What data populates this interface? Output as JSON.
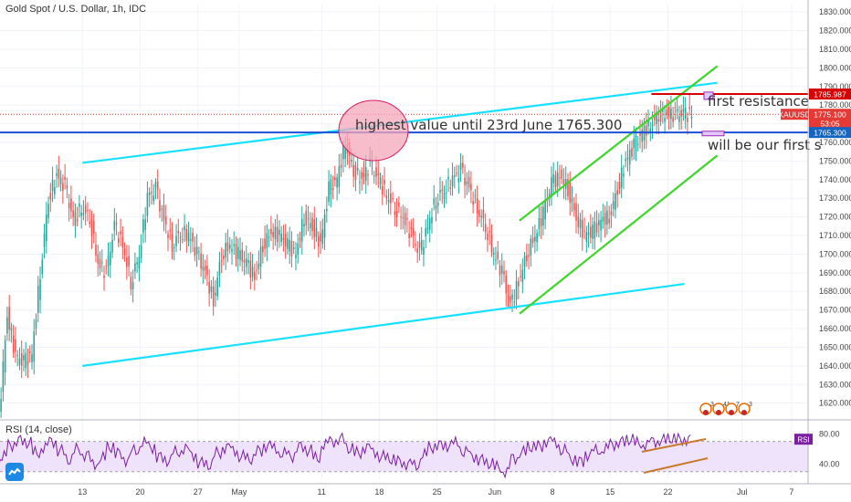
{
  "header": {
    "title": "Gold Spot / U.S. Dollar, 1h, IDC",
    "rsi_title": "RSI (14, close)"
  },
  "price_axis": {
    "ticks": [
      "1830.000",
      "1820.000",
      "1810.000",
      "1800.000",
      "1790.000",
      "1780.000",
      "1770.000",
      "1760.000",
      "1750.000",
      "1740.000",
      "1730.000",
      "1720.000",
      "1710.000",
      "1700.000",
      "1690.000",
      "1680.000",
      "1670.000",
      "1660.000",
      "1650.000",
      "1640.000",
      "1630.000",
      "1620.000"
    ],
    "tick_values": [
      1830,
      1820,
      1810,
      1800,
      1790,
      1780,
      1770,
      1760,
      1750,
      1740,
      1730,
      1720,
      1710,
      1700,
      1690,
      1680,
      1670,
      1660,
      1650,
      1640,
      1630,
      1620
    ],
    "labels": [
      {
        "text": "1785.987",
        "value": 1785.987,
        "color": "#d50000"
      },
      {
        "text": "XAUUSD",
        "value": 1775.1,
        "color": "#e53935"
      },
      {
        "text": "1775.100",
        "value": 1775.1,
        "color": "#e53935"
      },
      {
        "text": "53:05",
        "value": 1770.2,
        "color": "#e53935"
      },
      {
        "text": "1765.300",
        "value": 1765.3,
        "color": "#1565c0"
      }
    ]
  },
  "rsi_axis": {
    "ticks": [
      "80.00",
      "40.00"
    ],
    "tick_values": [
      80,
      40
    ],
    "badge": "RSI",
    "badge_value": 73
  },
  "time_axis": {
    "labels": [
      "13",
      "20",
      "27",
      "May",
      "11",
      "18",
      "25",
      "Jun",
      "8",
      "15",
      "22",
      "Jul",
      "7"
    ],
    "label_days": [
      13,
      20,
      27,
      32,
      42,
      49,
      56,
      63,
      70,
      77,
      84,
      93,
      99
    ]
  },
  "annotations": {
    "highest_value": "highest value until 23rd June 1765.300",
    "first_resistance": "first resistance",
    "first_support": "will be our first s"
  },
  "events": [
    "3",
    "41",
    "7",
    "3"
  ],
  "colors": {
    "up": "#26a69a",
    "down": "#ef5350",
    "channel_cyan": "#18e1ff",
    "channel_green": "#3ed62b",
    "horizontal_blue": "#1e50d8",
    "resistance_red": "#d50000",
    "rsi_line": "#7b1fa2",
    "rsi_band": "#efe2fb",
    "circle_fill": "#f4a7b9",
    "circle_stroke": "#d81b60"
  },
  "chart_data": {
    "type": "line",
    "instrument": "XAUUSD",
    "ylim": [
      1612,
      1834
    ],
    "x_unit": "day_of_year",
    "xlim": [
      3,
      101
    ],
    "series": [
      {
        "name": "XAUUSD",
        "x": [
          3,
          4,
          5,
          6,
          7,
          8,
          9,
          10,
          11,
          12,
          13,
          14,
          15,
          16,
          17,
          18,
          19,
          20,
          21,
          22,
          23,
          24,
          25,
          26,
          27,
          28,
          29,
          30,
          31,
          32,
          33,
          34,
          35,
          36,
          37,
          38,
          39,
          40,
          41,
          42,
          43,
          44,
          45,
          46,
          47,
          48,
          49,
          50,
          51,
          52,
          53,
          54,
          55,
          56,
          57,
          58,
          59,
          60,
          61,
          62,
          63,
          64,
          65,
          66,
          67,
          68,
          69,
          70,
          71,
          72,
          73,
          74,
          75,
          76,
          77,
          78,
          79,
          80,
          81,
          82,
          83,
          84,
          85,
          86,
          87
        ],
        "values": [
          1612,
          1668,
          1645,
          1642,
          1646,
          1690,
          1730,
          1742,
          1736,
          1718,
          1725,
          1720,
          1695,
          1690,
          1715,
          1705,
          1685,
          1700,
          1730,
          1735,
          1718,
          1705,
          1712,
          1710,
          1700,
          1690,
          1675,
          1700,
          1705,
          1700,
          1695,
          1688,
          1705,
          1712,
          1710,
          1705,
          1700,
          1720,
          1715,
          1705,
          1735,
          1740,
          1760,
          1745,
          1740,
          1748,
          1740,
          1732,
          1725,
          1720,
          1710,
          1700,
          1715,
          1730,
          1735,
          1740,
          1745,
          1735,
          1725,
          1715,
          1700,
          1690,
          1672,
          1685,
          1700,
          1710,
          1722,
          1738,
          1742,
          1735,
          1720,
          1710,
          1712,
          1718,
          1720,
          1735,
          1750,
          1758,
          1765,
          1770,
          1775,
          1775,
          1775,
          1775,
          1775
        ]
      }
    ],
    "rsi": {
      "name": "RSI (14, close)",
      "values": [
        30,
        50,
        65,
        72,
        68,
        55,
        62,
        70,
        58,
        45,
        60,
        52,
        40,
        48,
        62,
        55,
        45,
        58,
        68,
        62,
        50,
        44,
        56,
        60,
        52,
        42,
        38,
        55,
        62,
        58,
        50,
        46,
        58,
        64,
        60,
        54,
        50,
        64,
        58,
        48,
        66,
        70,
        74,
        60,
        55,
        62,
        56,
        50,
        46,
        44,
        40,
        38,
        52,
        62,
        66,
        64,
        68,
        56,
        50,
        46,
        40,
        36,
        30,
        48,
        56,
        62,
        64,
        70,
        68,
        58,
        46,
        44,
        52,
        58,
        60,
        66,
        70,
        72,
        68,
        66,
        70,
        72,
        73,
        73,
        73
      ],
      "ylim": [
        20,
        95
      ],
      "band": [
        30,
        70
      ]
    },
    "drawings": [
      {
        "type": "trendline",
        "label": "lower cyan channel",
        "x": [
          13,
          86
        ],
        "y": [
          1640,
          1684
        ]
      },
      {
        "type": "trendline",
        "label": "upper cyan channel",
        "x": [
          13,
          90
        ],
        "y": [
          1749,
          1792
        ]
      },
      {
        "type": "trendline",
        "label": "green channel top",
        "x": [
          66,
          90
        ],
        "y": [
          1718,
          1801
        ]
      },
      {
        "type": "trendline",
        "label": "green channel bottom",
        "x": [
          66,
          90
        ],
        "y": [
          1668,
          1753
        ]
      },
      {
        "type": "horizontal",
        "label": "1765.300 level",
        "y": 1765.3
      },
      {
        "type": "horizontal_segment",
        "label": "resistance",
        "x": [
          82,
          88
        ],
        "y": 1786
      }
    ]
  }
}
